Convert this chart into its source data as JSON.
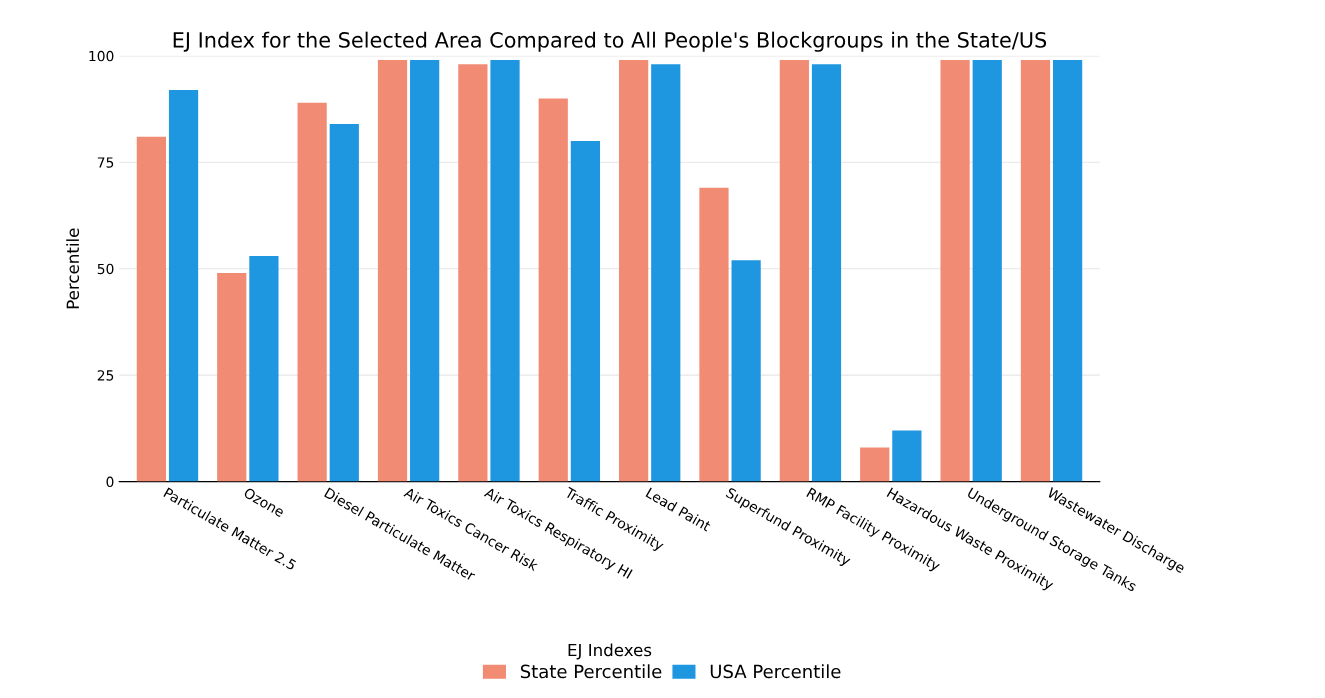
{
  "chart_data": {
    "type": "bar",
    "title": "EJ Index for the Selected Area Compared to All People's Blockgroups in the State/US",
    "xlabel": "EJ Indexes",
    "ylabel": "Percentile",
    "categories": [
      "Particulate Matter 2.5",
      "Ozone",
      "Diesel Particulate Matter",
      "Air Toxics Cancer Risk",
      "Air Toxics Respiratory HI",
      "Traffic Proximity",
      "Lead Paint",
      "Superfund Proximity",
      "RMP Facility Proximity",
      "Hazardous Waste Proximity",
      "Underground Storage Tanks",
      "Wastewater Discharge"
    ],
    "series": [
      {
        "name": "State Percentile",
        "color": "#f28b74",
        "values": [
          81,
          49,
          89,
          99,
          98,
          90,
          99,
          69,
          99,
          8,
          99,
          99
        ]
      },
      {
        "name": "USA Percentile",
        "color": "#1f96e0",
        "values": [
          92,
          53,
          84,
          99,
          99,
          80,
          98,
          52,
          98,
          12,
          99,
          99
        ]
      }
    ],
    "ylim": [
      0,
      100
    ],
    "yticks": [
      0,
      25,
      50,
      75,
      100
    ],
    "grid": "y",
    "legend": "bottom"
  }
}
